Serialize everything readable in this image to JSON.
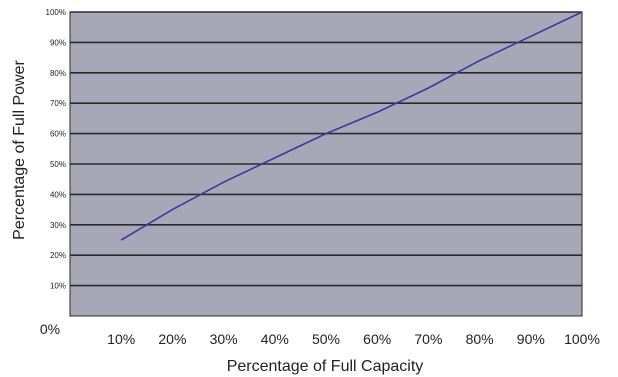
{
  "chart_data": {
    "type": "line",
    "xlabel": "Percentage of Full Capacity",
    "ylabel": "Percentage of Full Power",
    "x_tick_labels": [
      "10%",
      "20%",
      "30%",
      "40%",
      "50%",
      "60%",
      "70%",
      "80%",
      "90%",
      "100%"
    ],
    "y_tick_labels": [
      "10%",
      "20%",
      "30%",
      "40%",
      "50%",
      "60%",
      "70%",
      "80%",
      "90%",
      "100%"
    ],
    "origin_label": "0%",
    "xlim": [
      0,
      100
    ],
    "ylim": [
      0,
      100
    ],
    "grid": true,
    "legend": "none",
    "plot_background": "#a8a7b8",
    "grid_color": "#2b2b2b",
    "series": [
      {
        "color": "#3a3a9e",
        "x": [
          10,
          20,
          30,
          40,
          50,
          60,
          70,
          80,
          90,
          100
        ],
        "y": [
          25,
          35,
          44,
          52,
          60,
          67,
          75,
          84,
          92,
          100
        ]
      }
    ]
  }
}
